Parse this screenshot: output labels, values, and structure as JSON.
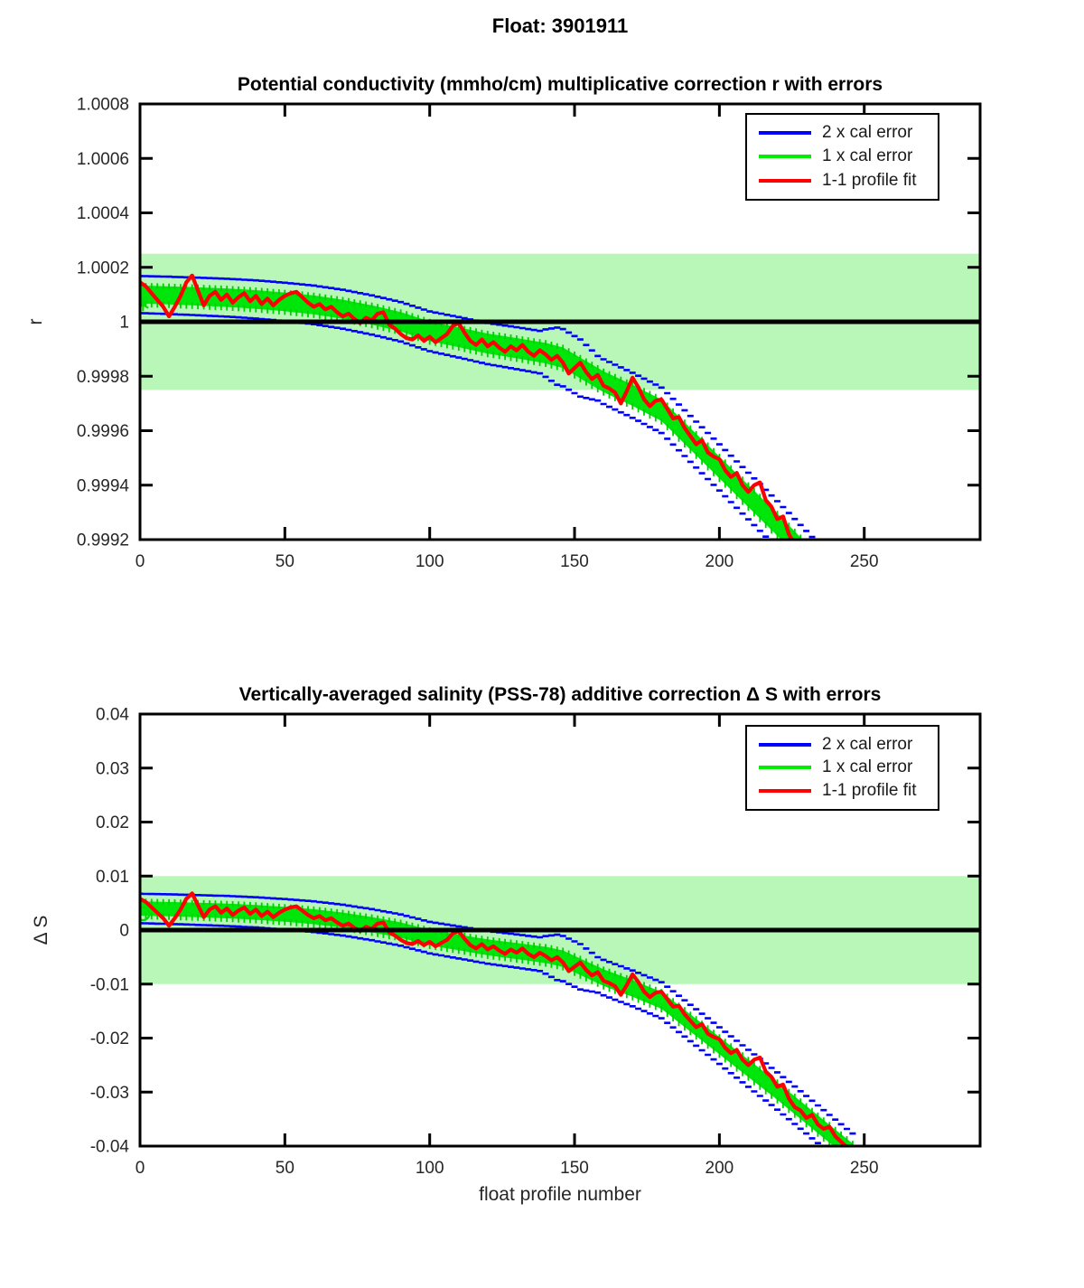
{
  "figure_title": "Float: 3901911",
  "legend": {
    "items": [
      {
        "label": "2 x cal error",
        "color": "#0000ff"
      },
      {
        "label": "1 x cal error",
        "color": "#00ee00"
      },
      {
        "label": "1-1 profile fit",
        "color": "#ff0000"
      }
    ]
  },
  "colors": {
    "band": "#b9f7b9",
    "error_fill": "#00e60a",
    "error_comb": "#00cf00",
    "cap_blue": "#0000ff",
    "fit_red": "#ff0000",
    "zero_line": "#000000",
    "axis": "#000000",
    "tick_text": "#262626"
  },
  "chart_data": [
    {
      "type": "line",
      "title": "Potential conductivity (mmho/cm) multiplicative correction r with errors",
      "ylabel": "r",
      "xlabel": "",
      "xlim": [
        0,
        290
      ],
      "ylim": [
        0.9992,
        1.0008
      ],
      "xticks": [
        0,
        50,
        100,
        150,
        200,
        250
      ],
      "xtick_labels": [
        "0",
        "50",
        "100",
        "150",
        "200",
        "250"
      ],
      "ytick_values": [
        1.0008,
        1.0006,
        1.0004,
        1.0002,
        1.0,
        0.9998,
        0.9996,
        0.9994,
        0.9992
      ],
      "ytick_labels": [
        "1.0008",
        "1.0006",
        "1.0004",
        "1.0002",
        "1",
        "0.9998",
        "0.9996",
        "0.9994",
        "0.9992"
      ],
      "grid": false,
      "legend_position": "top-right",
      "shaded_band": [
        0.99975,
        1.00025
      ],
      "zero_line_value": 1.0,
      "offset_base": 1.0,
      "offset_scale": 0.0001,
      "start_marker": {
        "type": "asterisk",
        "p": 1,
        "offset": 0.62,
        "color": "#00dd00"
      },
      "series": [
        {
          "name": "2 x cal error",
          "color": "#0000ff",
          "role": "envelope-2sigma"
        },
        {
          "name": "1 x cal error",
          "color": "#00ee00",
          "role": "envelope-1sigma"
        },
        {
          "name": "1-1 profile fit",
          "color": "#ff0000",
          "role": "fit"
        }
      ]
    },
    {
      "type": "line",
      "title": "Vertically-averaged salinity (PSS-78) additive correction Δ S with errors",
      "ylabel": "Δ S",
      "xlabel": "float profile number",
      "xlim": [
        0,
        290
      ],
      "ylim": [
        -0.04,
        0.04
      ],
      "xticks": [
        0,
        50,
        100,
        150,
        200,
        250
      ],
      "xtick_labels": [
        "0",
        "50",
        "100",
        "150",
        "200",
        "250"
      ],
      "ytick_values": [
        0.04,
        0.03,
        0.02,
        0.01,
        0.0,
        -0.01,
        -0.02,
        -0.03,
        -0.04
      ],
      "ytick_labels": [
        "0.04",
        "0.03",
        "0.02",
        "0.01",
        "0",
        "-0.01",
        "-0.02",
        "-0.03",
        "-0.04"
      ],
      "grid": false,
      "legend_position": "top-right",
      "shaded_band": [
        -0.01,
        0.01
      ],
      "zero_line_value": 0.0,
      "offset_base": 0.0,
      "offset_scale": 0.004,
      "start_marker": {
        "type": "circle",
        "p": 1,
        "offset": 0.75,
        "color": "#00dd00"
      },
      "series": [
        {
          "name": "2 x cal error",
          "color": "#0000ff",
          "role": "envelope-2sigma"
        },
        {
          "name": "1 x cal error",
          "color": "#00ee00",
          "role": "envelope-1sigma"
        },
        {
          "name": "1-1 profile fit",
          "color": "#ff0000",
          "role": "fit"
        }
      ]
    }
  ],
  "correction_series": {
    "comment": "Shared correction series; plotted value = offset_base + offset * offset_scale for each chart",
    "x_start": 0,
    "x_step": 2,
    "fit_offsets": [
      1.45,
      1.3,
      1.05,
      0.8,
      0.55,
      0.2,
      0.55,
      0.95,
      1.45,
      1.7,
      1.15,
      0.6,
      0.95,
      1.1,
      0.8,
      1.0,
      0.7,
      0.9,
      1.05,
      0.75,
      0.95,
      0.65,
      0.85,
      0.6,
      0.8,
      0.95,
      1.05,
      1.1,
      0.9,
      0.7,
      0.55,
      0.65,
      0.45,
      0.55,
      0.35,
      0.2,
      0.3,
      0.1,
      -0.05,
      0.15,
      0.05,
      0.3,
      0.35,
      -0.1,
      -0.25,
      -0.45,
      -0.6,
      -0.65,
      -0.5,
      -0.7,
      -0.55,
      -0.75,
      -0.6,
      -0.45,
      -0.15,
      -0.05,
      -0.4,
      -0.7,
      -0.85,
      -0.65,
      -0.9,
      -0.75,
      -0.95,
      -1.1,
      -0.9,
      -1.05,
      -0.85,
      -1.1,
      -1.25,
      -1.05,
      -1.2,
      -1.4,
      -1.25,
      -1.5,
      -1.9,
      -1.7,
      -1.5,
      -1.85,
      -2.1,
      -1.95,
      -2.35,
      -2.45,
      -2.6,
      -3.0,
      -2.55,
      -2.05,
      -2.4,
      -2.85,
      -3.1,
      -2.9,
      -2.85,
      -3.2,
      -3.55,
      -3.5,
      -3.9,
      -4.2,
      -4.5,
      -4.35,
      -4.8,
      -4.95,
      -5.05,
      -5.45,
      -5.7,
      -5.55,
      -6.0,
      -6.25,
      -6.0,
      -5.9,
      -6.55,
      -6.8,
      -7.25,
      -7.15,
      -7.8,
      -8.2,
      -8.35,
      -8.7,
      -8.55,
      -9.0,
      -9.2,
      -9.1,
      -9.55,
      -9.8,
      -10.05,
      -10.3
    ],
    "center_anchors": [
      [
        0,
        1.0
      ],
      [
        10,
        0.97
      ],
      [
        20,
        0.93
      ],
      [
        30,
        0.885
      ],
      [
        40,
        0.82
      ],
      [
        50,
        0.73
      ],
      [
        60,
        0.62
      ],
      [
        70,
        0.46
      ],
      [
        80,
        0.25
      ],
      [
        90,
        0.0
      ],
      [
        100,
        -0.35
      ],
      [
        110,
        -0.57
      ],
      [
        120,
        -0.8
      ],
      [
        130,
        -0.97
      ],
      [
        140,
        -1.15
      ],
      [
        146,
        -1.32
      ],
      [
        152,
        -1.7
      ],
      [
        160,
        -2.2
      ],
      [
        170,
        -2.7
      ],
      [
        180,
        -3.25
      ],
      [
        190,
        -4.3
      ],
      [
        200,
        -5.35
      ],
      [
        210,
        -6.4
      ],
      [
        220,
        -7.45
      ],
      [
        230,
        -8.55
      ],
      [
        240,
        -9.65
      ],
      [
        246,
        -10.3
      ]
    ],
    "err1_anchors": [
      [
        0,
        0.33
      ],
      [
        100,
        0.36
      ],
      [
        150,
        0.38
      ],
      [
        246,
        0.42
      ]
    ],
    "err2_anchors": [
      [
        0,
        0.68
      ],
      [
        100,
        0.73
      ],
      [
        138,
        0.78
      ],
      [
        144,
        1.05
      ],
      [
        152,
        1.05
      ],
      [
        158,
        0.82
      ],
      [
        246,
        0.88
      ]
    ]
  }
}
